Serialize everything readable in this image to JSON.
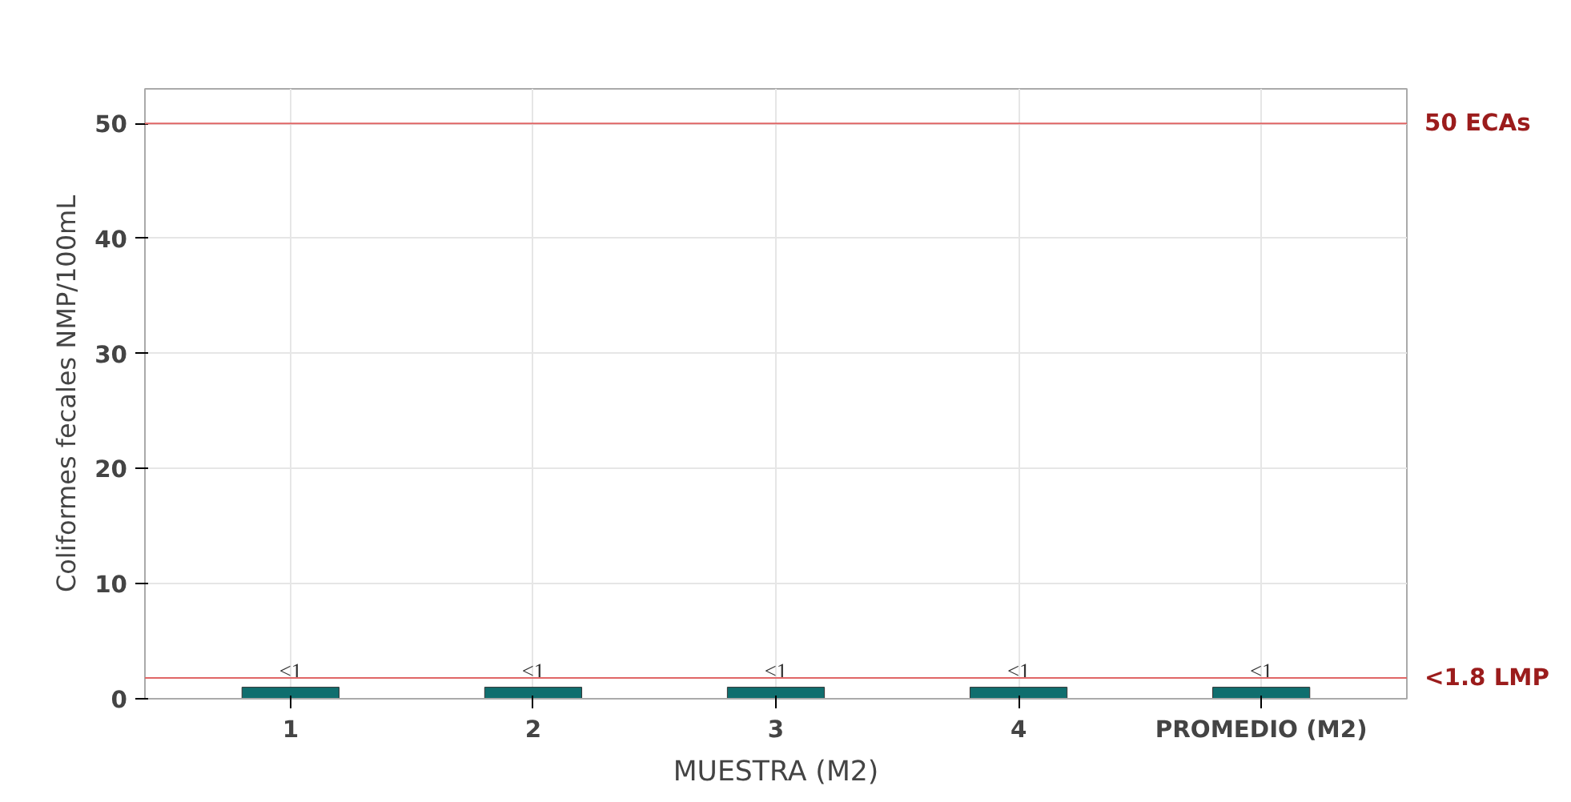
{
  "chart_data": {
    "type": "bar",
    "xlabel": "MUESTRA (M2)",
    "ylabel": "Coliformes fecales NMP/100mL",
    "categories": [
      "1",
      "2",
      "3",
      "4",
      "PROMEDIO (M2)"
    ],
    "values": [
      1,
      1,
      1,
      1,
      1
    ],
    "color": "#0f6e6e",
    "value_labels": [
      "<1",
      "<1",
      "<1",
      "<1",
      "<1"
    ],
    "ylim": [
      0,
      53
    ],
    "yticks": [
      0,
      10,
      20,
      30,
      40,
      50
    ],
    "grid": true,
    "ref_lines": [
      {
        "axis": "y",
        "value": 50,
        "label": "50   ECAs",
        "color": "#e06666"
      },
      {
        "axis": "y",
        "value": 1.8,
        "label": "<1.8  LMP",
        "color": "#e06666"
      }
    ]
  }
}
